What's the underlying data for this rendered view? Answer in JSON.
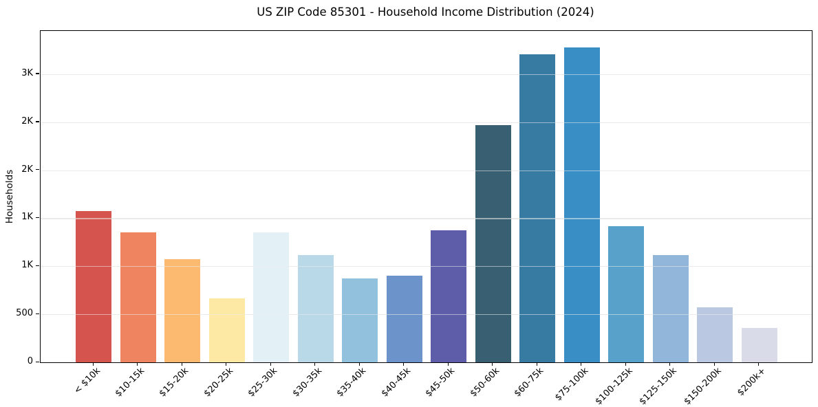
{
  "chart_data": {
    "type": "bar",
    "title": "US ZIP Code 85301 - Household Income Distribution (2024)",
    "xlabel": "",
    "ylabel": "Households",
    "categories": [
      "< $10k",
      "$10-15k",
      "$15-20k",
      "$20-25k",
      "$25-30k",
      "$30-35k",
      "$35-40k",
      "$40-45k",
      "$45-50k",
      "$50-60k",
      "$60-75k",
      "$75-100k",
      "$100-125k",
      "$125-150k",
      "$150-200k",
      "$200k+"
    ],
    "values": [
      1575,
      1350,
      1075,
      665,
      1355,
      1120,
      875,
      900,
      1375,
      2470,
      3205,
      3280,
      1420,
      1120,
      570,
      355
    ],
    "bar_colors": [
      "#d5544d",
      "#ef8560",
      "#fcba70",
      "#fde9a3",
      "#e3f0f5",
      "#b9d9e9",
      "#92c1dd",
      "#6d94ca",
      "#5d5da9",
      "#386072",
      "#377aa2",
      "#398ec5",
      "#58a1ca",
      "#91b6d9",
      "#bac9e1",
      "#d9dbe9"
    ],
    "ylim": [
      0,
      3450
    ],
    "yticks": {
      "values": [
        0,
        500,
        1000,
        1500,
        2000,
        2500,
        3000
      ],
      "labels": [
        "0",
        "500",
        "1K",
        "1K",
        "2K",
        "2K",
        "3K"
      ]
    },
    "x_tick_label_rotation_deg": 45,
    "grid": "horizontal gridlines drawn over bars",
    "gridline_color": "#e7e7e7",
    "legend": "none",
    "frame_color": "#000000",
    "background_color": "#ffffff"
  }
}
